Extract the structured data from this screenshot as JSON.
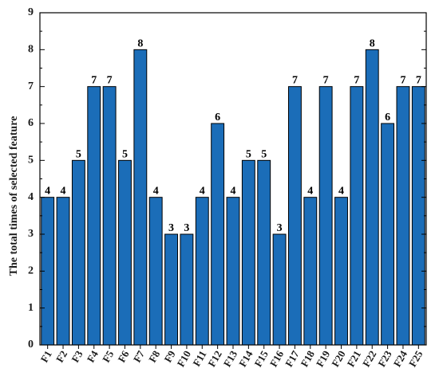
{
  "chart_data": {
    "type": "bar",
    "title": "",
    "xlabel": "",
    "ylabel": "The total times of selected feature",
    "categories": [
      "F1",
      "F2",
      "F3",
      "F4",
      "F5",
      "F6",
      "F7",
      "F8",
      "F9",
      "F10",
      "F11",
      "F12",
      "F13",
      "F14",
      "F15",
      "F16",
      "F17",
      "F18",
      "F19",
      "F20",
      "F21",
      "F22",
      "F23",
      "F24",
      "F25"
    ],
    "values": [
      4,
      4,
      5,
      7,
      7,
      5,
      8,
      4,
      3,
      3,
      4,
      6,
      4,
      5,
      5,
      3,
      7,
      4,
      7,
      4,
      7,
      8,
      6,
      7,
      7
    ],
    "ylim": [
      0,
      9
    ],
    "yticks": [
      0,
      1,
      2,
      3,
      4,
      5,
      6,
      7,
      8,
      9
    ],
    "grid": false,
    "legend": "none",
    "bar_color": "#1b6db8",
    "bar_edge_color": "#000000",
    "data_labels": true
  }
}
